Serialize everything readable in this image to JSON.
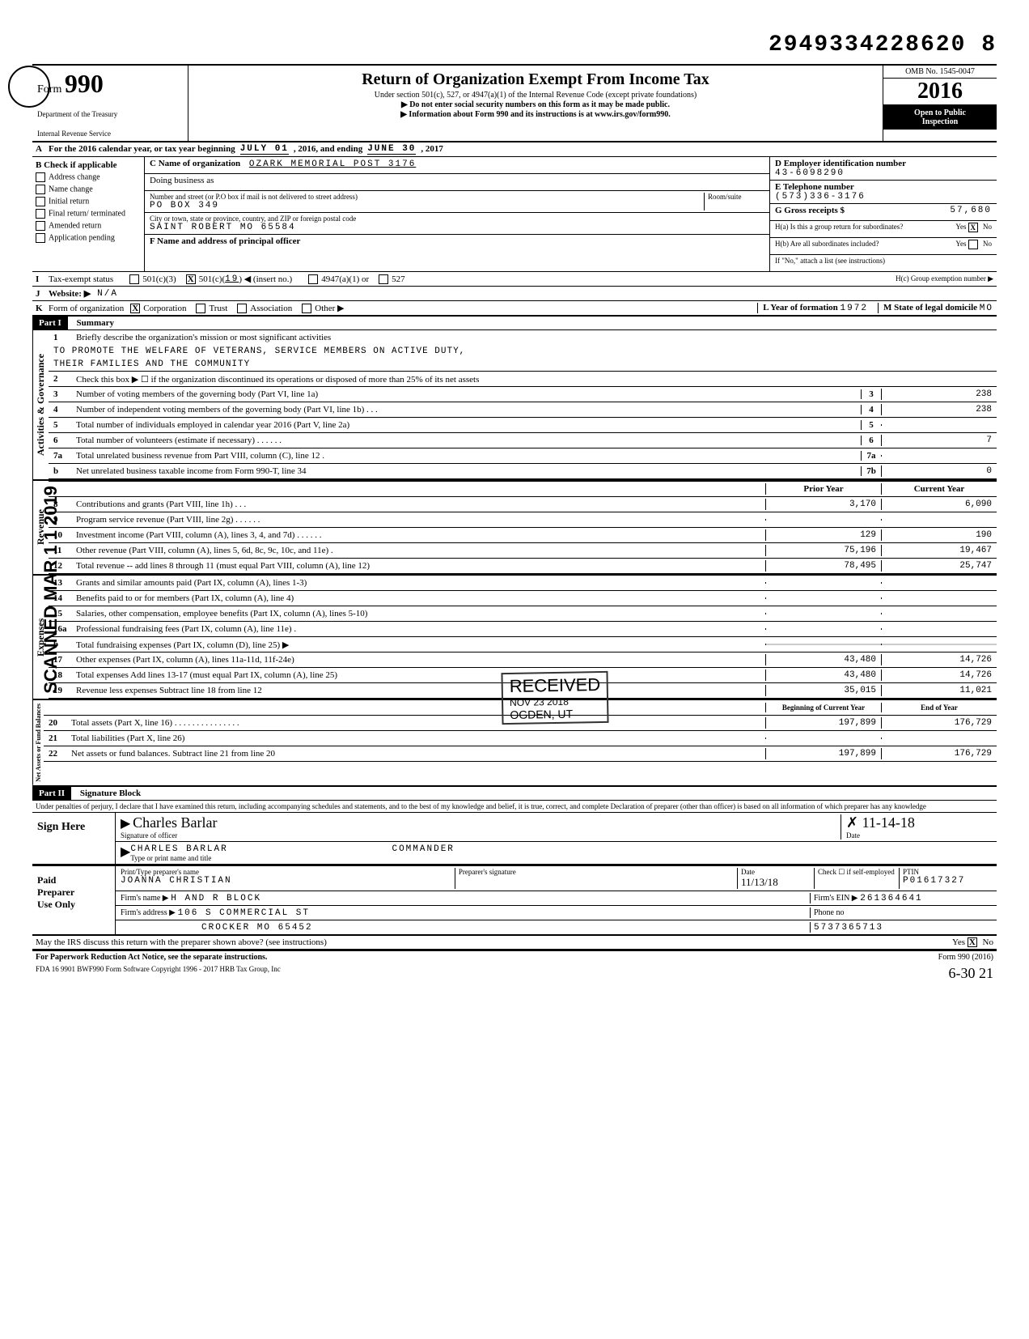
{
  "top_number": "2949334228620 8",
  "header": {
    "form_label": "Form",
    "form_number": "990",
    "dept1": "Department of the Treasury",
    "dept2": "Internal Revenue Service",
    "title": "Return of Organization Exempt From Income Tax",
    "subtitle1": "Under section 501(c), 527, or 4947(a)(1) of the Internal Revenue Code (except private foundations)",
    "subtitle2": "▶ Do not enter social security numbers on this form as it may be made public.",
    "subtitle3": "▶ Information about Form 990 and its instructions is at www.irs.gov/form990.",
    "omb": "OMB No. 1545-0047",
    "year": "2016",
    "open1": "Open to Public",
    "open2": "Inspection"
  },
  "row_a": {
    "label": "A",
    "text_pre": "For the 2016 calendar year, or tax year beginning",
    "begin": "JULY 01",
    "mid": ", 2016, and ending",
    "end": "JUNE 30",
    "endyear": ", 2017"
  },
  "col_b": {
    "label": "B",
    "heading": "Check if applicable",
    "items": [
      "Address change",
      "Name change",
      "Initial return",
      "Final return/ terminated",
      "Amended return",
      "Application pending"
    ]
  },
  "col_c": {
    "name_label": "C Name of organization",
    "name": "OZARK MEMORIAL POST 3176",
    "dba_label": "Doing business as",
    "street_label": "Number and street (or P.O  box if mail is not delivered to street address)",
    "room_label": "Room/suite",
    "street": "PO BOX 349",
    "city_label": "City or town, state or province, country, and ZIP or foreign postal code",
    "city": "SAINT ROBERT MO 65584",
    "f_label": "F   Name and address of principal officer"
  },
  "col_de": {
    "d_label": "D Employer identification number",
    "ein": "43-6098290",
    "e_label": "E  Telephone number",
    "phone": "(573)336-3176",
    "g_label": "G  Gross receipts $",
    "gross": "57,680",
    "ha_label": "H(a)  Is this a group return for subordinates?",
    "hb_label": "H(b)  Are all subordinates included?",
    "hb_note": "If \"No,\" attach a list (see instructions)",
    "hc_label": "H(c)  Group exemption number  ▶",
    "yes": "Yes",
    "no": "No"
  },
  "row_i": {
    "label": "I",
    "text": "Tax-exempt status",
    "opt1": "501(c)(3)",
    "opt2_pre": "501(c)(",
    "opt2_num": "19",
    "opt2_post": ")  ◀ (insert no.)",
    "opt3": "4947(a)(1) or",
    "opt4": "527"
  },
  "row_j": {
    "label": "J",
    "text": "Website: ▶",
    "value": "N/A"
  },
  "row_k": {
    "label": "K",
    "text": "Form of organization",
    "opts": [
      "Corporation",
      "Trust",
      "Association",
      "Other ▶"
    ],
    "l_label": "L  Year of formation",
    "l_value": "1972",
    "m_label": "M  State of legal domicile",
    "m_value": "MO"
  },
  "part1": {
    "label": "Part I",
    "title": "Summary"
  },
  "governance": {
    "vert": "Activities & Governance",
    "line1_label": "Briefly describe the organization's mission or most significant activities",
    "mission1": "TO PROMOTE THE WELFARE OF VETERANS, SERVICE MEMBERS ON ACTIVE DUTY,",
    "mission2": "THEIR FAMILIES AND THE COMMUNITY",
    "line2": "Check this box ▶ ☐ if the organization discontinued its operations or disposed of more than 25% of its net assets",
    "lines": [
      {
        "n": "3",
        "d": "Number of voting members of the governing body (Part VI, line 1a)",
        "box": "3",
        "val": "238"
      },
      {
        "n": "4",
        "d": "Number of independent voting members of the governing body (Part VI, line 1b)   . . .",
        "box": "4",
        "val": "238"
      },
      {
        "n": "5",
        "d": "Total number of individuals employed in calendar year 2016 (Part V, line 2a)",
        "box": "5",
        "val": ""
      },
      {
        "n": "6",
        "d": "Total number of volunteers (estimate if necessary) .         .       . .    . .",
        "box": "6",
        "val": "7"
      },
      {
        "n": "7a",
        "d": "Total unrelated business revenue from Part VIII, column (C), line 12   .",
        "box": "7a",
        "val": ""
      },
      {
        "n": "b",
        "d": "Net unrelated business taxable income from Form 990-T, line 34",
        "box": "7b",
        "val": "0"
      }
    ]
  },
  "revenue": {
    "vert": "Revenue",
    "header_prior": "Prior Year",
    "header_current": "Current Year",
    "lines": [
      {
        "n": "8",
        "d": "Contributions and grants (Part VIII, line 1h)         .       .             .",
        "prior": "3,170",
        "curr": "6,090"
      },
      {
        "n": "9",
        "d": "Program service revenue (Part VIII, line 2g)             . .    . . . .",
        "prior": "",
        "curr": ""
      },
      {
        "n": "10",
        "d": "Investment income (Part VIII, column (A), lines 3, 4, and 7d)    . . . . . .",
        "prior": "129",
        "curr": "190"
      },
      {
        "n": "11",
        "d": "Other revenue (Part VIII, column (A), lines 5, 6d, 8c, 9c, 10c, and 11e)  .",
        "prior": "75,196",
        "curr": "19,467"
      },
      {
        "n": "12",
        "d": "Total revenue -- add lines 8 through 11 (must equal Part VIII, column (A), line 12)",
        "prior": "78,495",
        "curr": "25,747"
      }
    ]
  },
  "expenses": {
    "vert": "Expenses",
    "lines": [
      {
        "n": "13",
        "d": "Grants and similar amounts paid (Part IX, column (A), lines 1-3)",
        "prior": "",
        "curr": ""
      },
      {
        "n": "14",
        "d": "Benefits paid to or for members (Part IX, column (A), line 4)",
        "prior": "",
        "curr": ""
      },
      {
        "n": "15",
        "d": "Salaries, other compensation, employee benefits (Part IX, column (A), lines 5-10)",
        "prior": "",
        "curr": ""
      },
      {
        "n": "16a",
        "d": "Professional fundraising fees (Part IX, column (A), line 11e)     .",
        "prior": "",
        "curr": ""
      },
      {
        "n": "b",
        "d": "Total fundraising expenses (Part IX, column (D), line 25)    ▶",
        "prior": "shaded",
        "curr": "shaded"
      },
      {
        "n": "17",
        "d": "Other expenses (Part IX, column (A), lines 11a-11d, 11f-24e)",
        "prior": "43,480",
        "curr": "14,726"
      },
      {
        "n": "18",
        "d": "Total expenses  Add lines 13-17 (must equal Part IX, column (A), line 25)",
        "prior": "43,480",
        "curr": "14,726"
      },
      {
        "n": "19",
        "d": "Revenue less expenses  Subtract line 18 from line 12",
        "prior": "35,015",
        "curr": "11,021"
      }
    ]
  },
  "netassets": {
    "vert": "Net Assets or Fund Balances",
    "header_begin": "Beginning of Current Year",
    "header_end": "End of Year",
    "lines": [
      {
        "n": "20",
        "d": "Total assets (Part X, line 16) .     . . . . . . . . . . . . .      .",
        "prior": "197,899",
        "curr": "176,729"
      },
      {
        "n": "21",
        "d": "Total liabilities (Part X, line 26)",
        "prior": "",
        "curr": ""
      },
      {
        "n": "22",
        "d": "Net assets or fund balances. Subtract line 21 from line 20",
        "prior": "197,899",
        "curr": "176,729"
      }
    ]
  },
  "part2": {
    "label": "Part II",
    "title": "Signature Block",
    "perjury": "Under penalties of perjury, I declare that I have examined this return, including accompanying schedules and statements, and to the best of my knowledge and belief, it is true, correct, and complete  Declaration of preparer (other than officer) is based on all information of which preparer has any knowledge"
  },
  "sign": {
    "left": "Sign Here",
    "sig_label": "Signature of officer",
    "sig": "Charles Barlar",
    "date": "11-14-18",
    "date_label": "Date",
    "name_label": "Type or print name and title",
    "name": "CHARLES BARLAR",
    "title": "COMMANDER"
  },
  "preparer": {
    "left1": "Paid",
    "left2": "Preparer",
    "left3": "Use Only",
    "print_label": "Print/Type preparer's name",
    "print_name": "JOANNA CHRISTIAN",
    "sig_label": "Preparer's signature",
    "date_label": "Date",
    "date": "11/13/18",
    "check_label": "Check ☐ if self-employed",
    "ptin_label": "PTIN",
    "ptin": "P01617327",
    "firm_label": "Firm's name   ▶",
    "firm": "H AND R BLOCK",
    "ein_label": "Firm's EIN ▶",
    "ein": "261364641",
    "addr_label": "Firm's address  ▶",
    "addr1": "106 S COMMERCIAL ST",
    "addr2": "CROCKER MO 65452",
    "phone_label": "Phone no",
    "phone": "5737365713"
  },
  "footer": {
    "discuss": "May the IRS discuss this return with the preparer shown above? (see instructions)",
    "paperwork": "For Paperwork Reduction Act Notice, see the separate instructions.",
    "form_ref": "Form 990 (2016)",
    "bottom": "FDA     16  9901       BWF990       Form Software Copyright 1996 - 2017 HRB Tax Group, Inc",
    "handwritten": "6-30 21"
  },
  "stamps": {
    "scanned": "SCANNED MAR 1 1 2019",
    "received": "RECEIVED",
    "received_date": "NOV 23 2018",
    "ogden": "OGDEN, UT"
  }
}
